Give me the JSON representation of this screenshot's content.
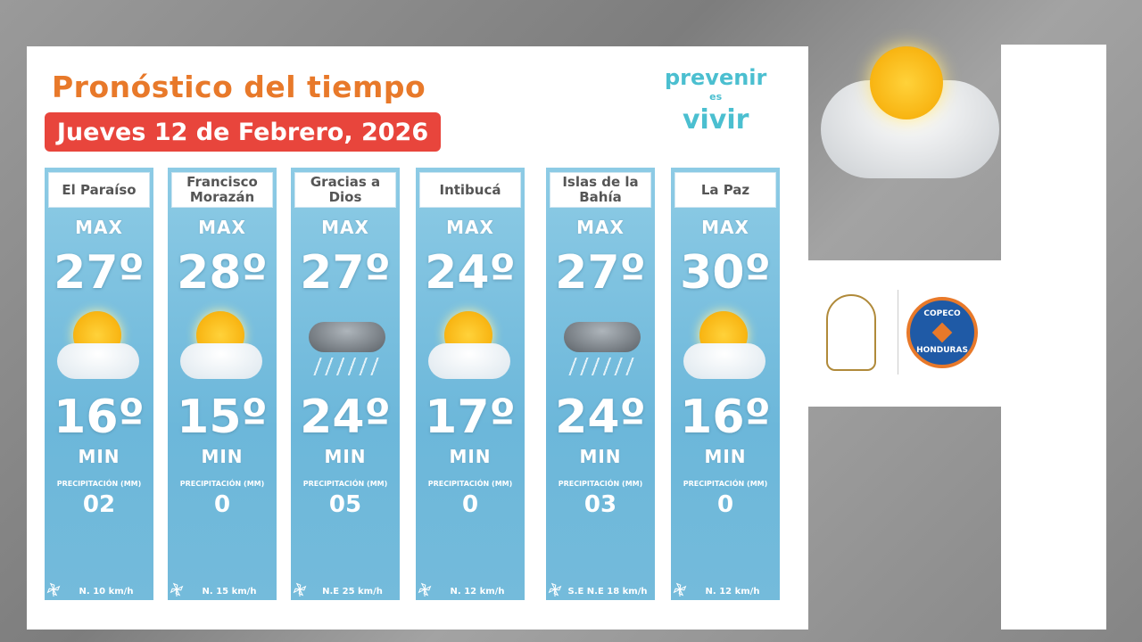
{
  "header": {
    "title": "Pronóstico del tiempo",
    "date": "Jueves 12 de Febrero, 2026"
  },
  "brand": {
    "line1": "prevenir",
    "line2": "es",
    "line3": "vivir",
    "copeco_top": "COPECO",
    "copeco_bottom": "HONDURAS"
  },
  "labels": {
    "max": "MAX",
    "min": "MIN",
    "precip": "PRECIPITACIÓN (MM)"
  },
  "colors": {
    "title": "#e8792a",
    "date_bg": "#e8453c",
    "card": "#74bbdb",
    "brand": "#4bbfd0"
  },
  "cards": [
    {
      "name": "El Paraíso",
      "max": "27º",
      "min": "16º",
      "precip": "02",
      "wind": "N.  10 km/h",
      "icon": "sun-cloud-icon"
    },
    {
      "name": "Francisco Morazán",
      "max": "28º",
      "min": "15º",
      "precip": "0",
      "wind": "N.  15 km/h",
      "icon": "sun-cloud-icon"
    },
    {
      "name": "Gracias a Dios",
      "max": "27º",
      "min": "24º",
      "precip": "05",
      "wind": "N.E  25 km/h",
      "icon": "rain-cloud-icon"
    },
    {
      "name": "Intibucá",
      "max": "24º",
      "min": "17º",
      "precip": "0",
      "wind": "N. 12  km/h",
      "icon": "sun-cloud-icon"
    },
    {
      "name": "Islas de la Bahía",
      "max": "27º",
      "min": "24º",
      "precip": "03",
      "wind": "S.E  N.E  18 km/h",
      "icon": "rain-cloud-icon"
    },
    {
      "name": "La Paz",
      "max": "30º",
      "min": "16º",
      "precip": "0",
      "wind": "N.  12 km/h",
      "icon": "sun-cloud-icon"
    }
  ]
}
